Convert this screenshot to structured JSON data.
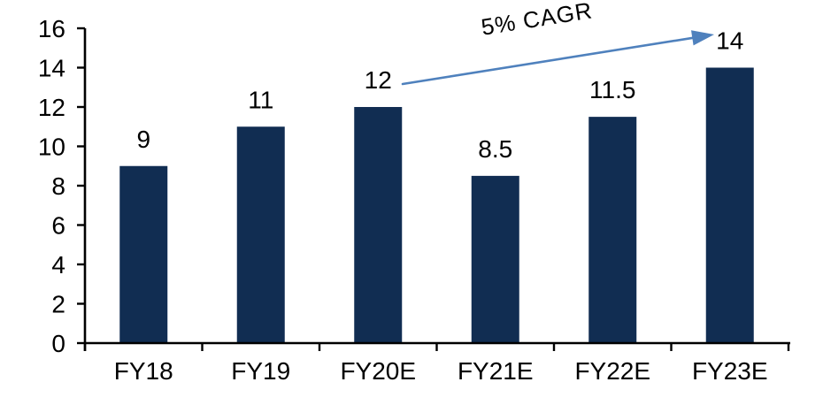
{
  "chart_data": {
    "type": "bar",
    "title": "",
    "xlabel": "",
    "ylabel": "",
    "categories": [
      "FY18",
      "FY19",
      "FY20E",
      "FY21E",
      "FY22E",
      "FY23E"
    ],
    "values": [
      9,
      11,
      12,
      8.5,
      11.5,
      14
    ],
    "data_labels": [
      "9",
      "11",
      "12",
      "8.5",
      "11.5",
      "14"
    ],
    "ylim": [
      0,
      16
    ],
    "yticks": [
      0,
      2,
      4,
      6,
      8,
      10,
      12,
      14,
      16
    ],
    "ytick_labels": [
      "0",
      "2",
      "4",
      "6",
      "8",
      "10",
      "12",
      "14",
      "16"
    ],
    "grid": false,
    "legend": null,
    "annotation": {
      "text": "5% CAGR",
      "type": "trend-arrow",
      "arrow_from_value": 12,
      "arrow_to_value": 14
    },
    "colors": {
      "bar": "#112D52",
      "arrow": "#4F81BD",
      "axis": "#000000",
      "text": "#000000"
    },
    "background": "#FFFFFF"
  }
}
